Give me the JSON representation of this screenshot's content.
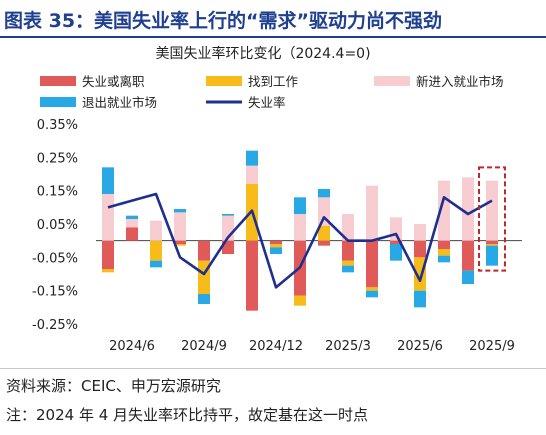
{
  "header": {
    "title": "图表 35：美国失业率上行的“需求”驱动力尚不强劲"
  },
  "chart_data": {
    "type": "bar",
    "title": "美国失业率环比变化（2024.4=0)",
    "x_tick_labels": [
      "2024/6",
      "2024/9",
      "2024/12",
      "2025/3",
      "2025/6",
      "2025/9"
    ],
    "x_tick_months": [
      "2024-06",
      "2024-09",
      "2024-12",
      "2025-03",
      "2025-06",
      "2025-09"
    ],
    "y_tick_labels": [
      "0.35%",
      "0.25%",
      "0.15%",
      "0.05%",
      "-0.05%",
      "-0.15%",
      "-0.25%"
    ],
    "ylim": [
      -0.25,
      0.35
    ],
    "stacked": true,
    "x": [
      "2024-05",
      "2024-06",
      "2024-07",
      "2024-08",
      "2024-09",
      "2024-10",
      "2024-11",
      "2024-12",
      "2025-01",
      "2025-02",
      "2025-03",
      "2025-04",
      "2025-05",
      "2025-06",
      "2025-07",
      "2025-08",
      "2025-09"
    ],
    "colors": {
      "job_losers": "#e05a5a",
      "job_finders_entrants": "#f7bb1a",
      "new_entrants": "#f8cdd2",
      "exit_labor": "#28a8e4",
      "unemployment": "#1f2f8f",
      "highlight_box": "#c0282d"
    },
    "series": [
      {
        "key": "job_losers",
        "name": "失业或离职",
        "kind": "bar",
        "values": [
          -0.085,
          0.04,
          0.0,
          -0.01,
          -0.06,
          -0.04,
          -0.21,
          -0.01,
          -0.165,
          -0.015,
          -0.06,
          -0.14,
          -0.01,
          -0.05,
          -0.025,
          -0.09,
          -0.01
        ]
      },
      {
        "key": "job_finders_entrants",
        "name": "找到工作",
        "kind": "bar",
        "values": [
          -0.01,
          0.0,
          -0.06,
          -0.005,
          -0.1,
          0.0,
          0.17,
          -0.01,
          -0.03,
          0.045,
          -0.015,
          -0.01,
          0.0,
          -0.1,
          -0.02,
          0.0,
          -0.005
        ]
      },
      {
        "key": "new_entrants",
        "name": "新进入就业市场",
        "kind": "bar",
        "values": [
          0.14,
          0.025,
          0.06,
          0.085,
          0.0,
          0.075,
          0.055,
          0.0,
          0.08,
          0.085,
          0.08,
          0.165,
          0.07,
          0.05,
          0.18,
          0.19,
          0.18
        ]
      },
      {
        "key": "exit_labor",
        "name": "退出就业市场",
        "kind": "bar",
        "values": [
          0.08,
          0.01,
          -0.02,
          0.01,
          -0.03,
          0.005,
          0.045,
          -0.02,
          0.05,
          0.025,
          -0.02,
          -0.02,
          -0.05,
          -0.05,
          -0.02,
          -0.04,
          -0.06
        ]
      },
      {
        "key": "unemployment",
        "name": "失业率",
        "kind": "line",
        "values": [
          0.1,
          0.12,
          0.14,
          -0.05,
          -0.1,
          0.01,
          0.09,
          -0.14,
          -0.08,
          0.07,
          0.0,
          0.0,
          0.02,
          -0.12,
          0.13,
          0.08,
          0.12
        ]
      }
    ],
    "legend": {
      "placement": "top",
      "columns": 3
    },
    "annotation": {
      "highlight_month": "2025-09",
      "style": "dashed-box"
    },
    "grid": false
  },
  "source": "资料来源：CEIC、申万宏源研究",
  "note": "注：2024 年 4 月失业率环比持平，故定基在这一时点"
}
